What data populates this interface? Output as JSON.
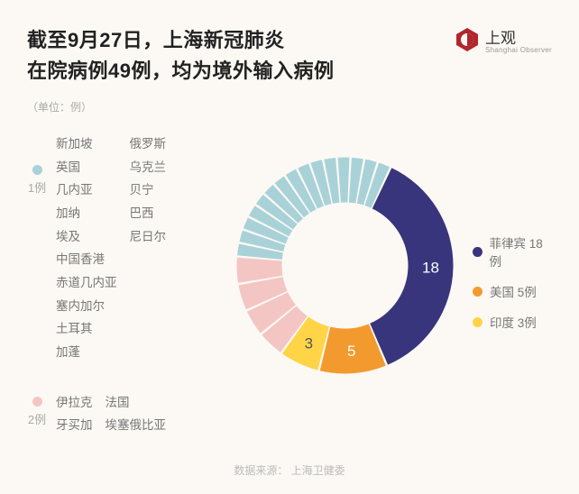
{
  "title_line1": "截至9月27日，上海新冠肺炎",
  "title_line2": "在院病例49例，均为境外输入病例",
  "unit_label": "（单位：例）",
  "brand": {
    "name": "上观",
    "sub": "Shanghai Observer"
  },
  "logo_color": "#b1262c",
  "source_label": "数据来源：",
  "source_name": "上海卫健委",
  "colors": {
    "philippines": "#38357d",
    "usa": "#f39a2e",
    "india": "#ffd447",
    "two_cases": "#f3c6c4",
    "one_case": "#a9d2d8",
    "bg": "#fcf9f4",
    "text_muted": "#aaa"
  },
  "total_cases": 49,
  "chart": {
    "type": "donut",
    "inner_radius": 70,
    "outer_radius": 120,
    "gap_deg": 1.2,
    "rotation_start_deg": 25,
    "segments": [
      {
        "key": "philippines",
        "value": 18,
        "color": "#38357d",
        "show_label": "18",
        "label_class": ""
      },
      {
        "key": "usa",
        "value": 5,
        "color": "#f39a2e",
        "show_label": "5",
        "label_class": ""
      },
      {
        "key": "india",
        "value": 3,
        "color": "#ffd447",
        "show_label": "3",
        "label_class": "dark"
      },
      {
        "key": "iraq",
        "value": 2,
        "color": "#f3c6c4"
      },
      {
        "key": "jamaica",
        "value": 2,
        "color": "#f3c6c4"
      },
      {
        "key": "france",
        "value": 2,
        "color": "#f3c6c4"
      },
      {
        "key": "ethiopia",
        "value": 2,
        "color": "#f3c6c4"
      },
      {
        "key": "singapore",
        "value": 1,
        "color": "#a9d2d8"
      },
      {
        "key": "uk",
        "value": 1,
        "color": "#a9d2d8"
      },
      {
        "key": "guineaC",
        "value": 1,
        "color": "#a9d2d8"
      },
      {
        "key": "ghana",
        "value": 1,
        "color": "#a9d2d8"
      },
      {
        "key": "egypt",
        "value": 1,
        "color": "#a9d2d8"
      },
      {
        "key": "hk",
        "value": 1,
        "color": "#a9d2d8"
      },
      {
        "key": "eqguinea",
        "value": 1,
        "color": "#a9d2d8"
      },
      {
        "key": "russia",
        "value": 1,
        "color": "#a9d2d8"
      },
      {
        "key": "ukraine",
        "value": 1,
        "color": "#a9d2d8"
      },
      {
        "key": "benin",
        "value": 1,
        "color": "#a9d2d8"
      },
      {
        "key": "brazil",
        "value": 1,
        "color": "#a9d2d8"
      },
      {
        "key": "niger",
        "value": 1,
        "color": "#a9d2d8"
      },
      {
        "key": "senegal",
        "value": 1,
        "color": "#a9d2d8"
      },
      {
        "key": "turkey",
        "value": 1,
        "color": "#a9d2d8"
      },
      {
        "key": "gabon",
        "value": 1,
        "color": "#a9d2d8"
      }
    ]
  },
  "left_groups": [
    {
      "count_label": "1例",
      "color": "#a9d2d8",
      "columns": [
        [
          "新加坡",
          "英国",
          "几内亚",
          "加纳",
          "埃及",
          "中国香港",
          "赤道几内亚"
        ],
        [
          "俄罗斯",
          "乌克兰",
          "贝宁",
          "巴西",
          "尼日尔"
        ],
        [
          "塞内加尔",
          "土耳其",
          "加蓬"
        ]
      ]
    },
    {
      "count_label": "2例",
      "color": "#f3c6c4",
      "columns": [
        [
          "伊拉克",
          "牙买加"
        ],
        [
          "法国",
          "埃塞俄比亚"
        ]
      ]
    }
  ],
  "right_legend": [
    {
      "label": "菲律宾 18例",
      "color": "#38357d"
    },
    {
      "label": "美国 5例",
      "color": "#f39a2e"
    },
    {
      "label": "印度 3例",
      "color": "#ffd447"
    }
  ]
}
